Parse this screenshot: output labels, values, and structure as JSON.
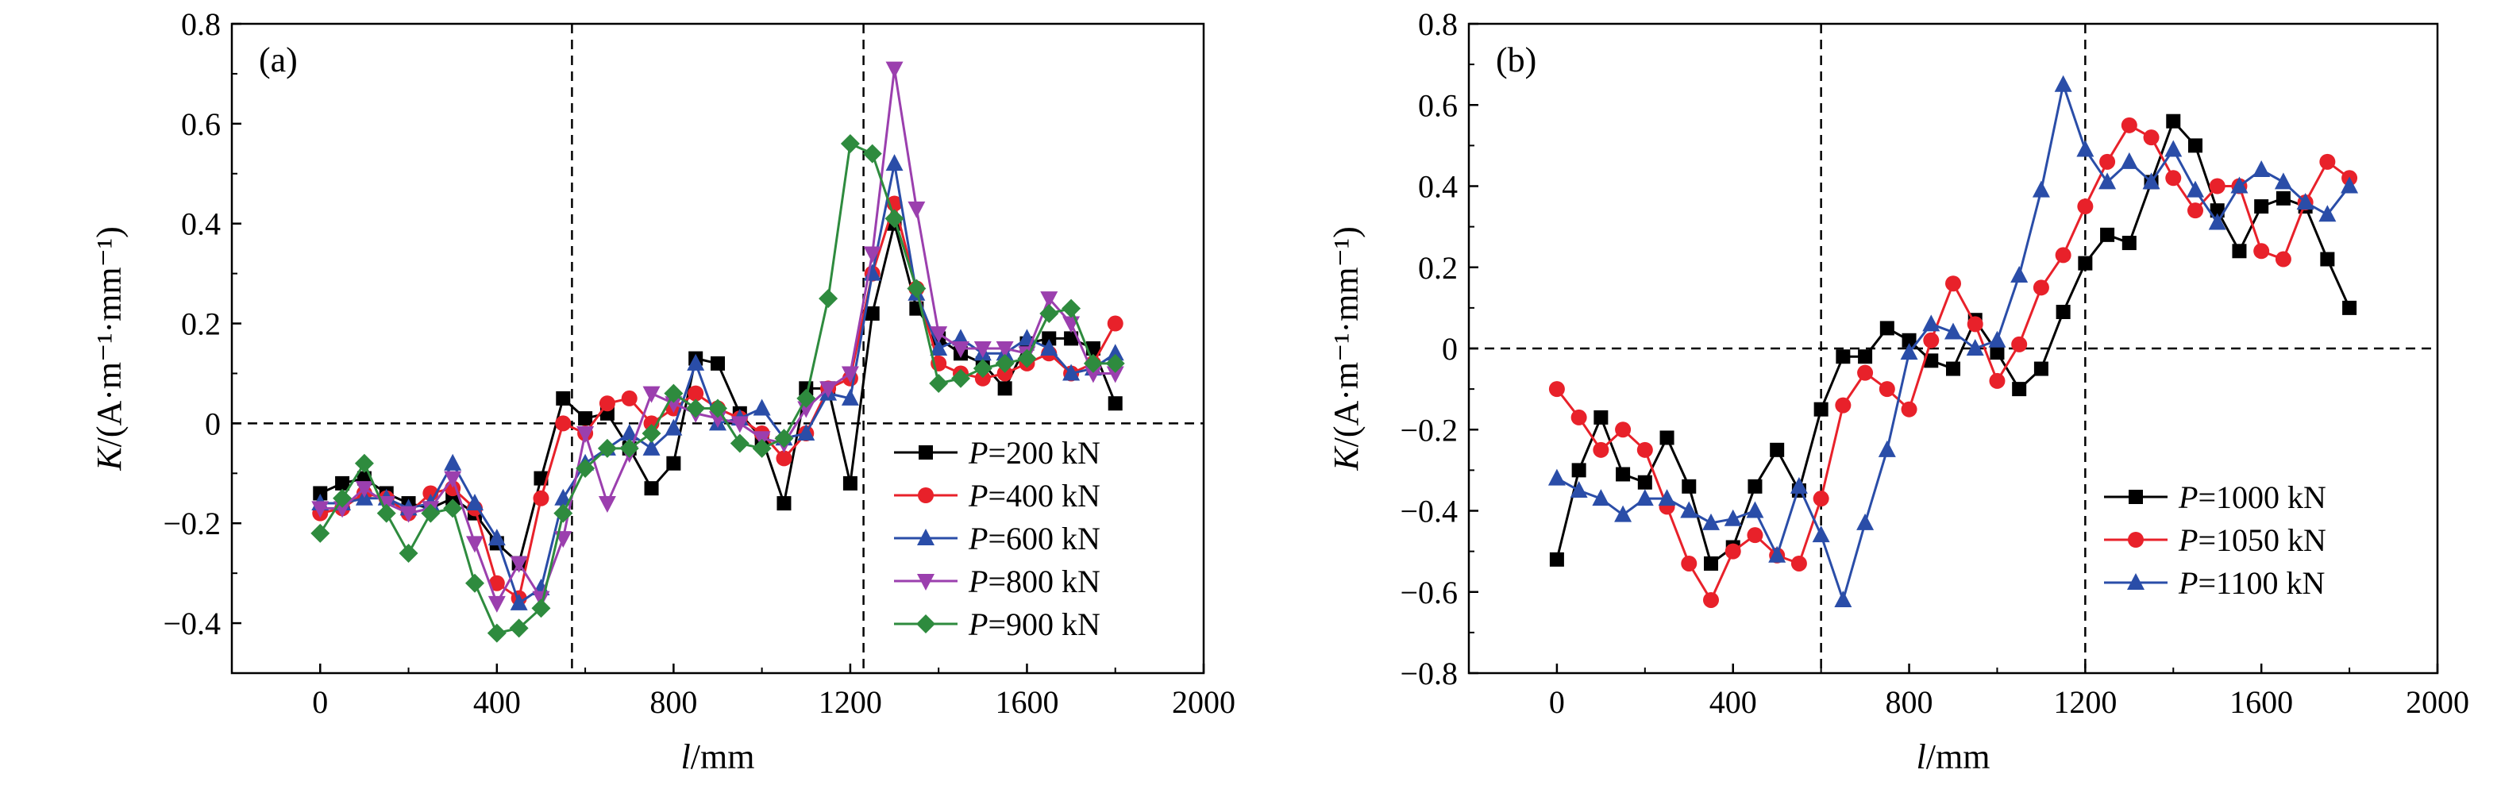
{
  "chart_data": [
    {
      "type": "line",
      "panel_label": "(a)",
      "xlabel_var": "l",
      "xlabel_unit": "/mm",
      "ylabel_var": "K",
      "ylabel_unit": "/(A·m⁻¹·mm⁻¹)",
      "xlim": [
        -200,
        2000
      ],
      "ylim": [
        -0.5,
        0.8
      ],
      "xticks": [
        "0",
        "400",
        "800",
        "1200",
        "1600",
        "2000"
      ],
      "yticks": [
        "−0.4",
        "−0.2",
        "0",
        "0.2",
        "0.4",
        "0.6",
        "0.8"
      ],
      "xtick_values": [
        0,
        400,
        800,
        1200,
        1600,
        2000
      ],
      "ytick_values": [
        -0.4,
        -0.2,
        0,
        0.2,
        0.4,
        0.6,
        0.8
      ],
      "vlines": [
        570,
        1230
      ],
      "hlines": [
        0
      ],
      "legend_position": "bottom-right",
      "series": [
        {
          "var": "P",
          "rest": "=200 kN",
          "color": "#000000",
          "marker": "square",
          "x": [
            0,
            50,
            100,
            150,
            200,
            250,
            300,
            350,
            400,
            450,
            500,
            550,
            600,
            650,
            700,
            750,
            800,
            850,
            900,
            950,
            1000,
            1050,
            1100,
            1150,
            1200,
            1250,
            1300,
            1350,
            1400,
            1450,
            1500,
            1550,
            1600,
            1650,
            1700,
            1750,
            1800
          ],
          "y": [
            -0.14,
            -0.12,
            -0.11,
            -0.14,
            -0.16,
            -0.17,
            -0.15,
            -0.18,
            -0.24,
            -0.28,
            -0.11,
            0.05,
            0.01,
            0.02,
            -0.05,
            -0.13,
            -0.08,
            0.13,
            0.12,
            0.02,
            -0.03,
            -0.16,
            0.07,
            0.07,
            -0.12,
            0.22,
            0.4,
            0.23,
            0.17,
            0.14,
            0.12,
            0.07,
            0.16,
            0.17,
            0.17,
            0.15,
            0.04
          ]
        },
        {
          "var": "P",
          "rest": "=400 kN",
          "color": "#e8212a",
          "marker": "circle",
          "x": [
            0,
            50,
            100,
            150,
            200,
            250,
            300,
            350,
            400,
            450,
            500,
            550,
            600,
            650,
            700,
            750,
            800,
            850,
            900,
            950,
            1000,
            1050,
            1100,
            1150,
            1200,
            1250,
            1300,
            1350,
            1400,
            1450,
            1500,
            1550,
            1600,
            1650,
            1700,
            1750,
            1800
          ],
          "y": [
            -0.18,
            -0.17,
            -0.14,
            -0.15,
            -0.18,
            -0.14,
            -0.13,
            -0.17,
            -0.32,
            -0.35,
            -0.15,
            0.0,
            -0.02,
            0.04,
            0.05,
            0.0,
            0.03,
            0.06,
            0.03,
            0.01,
            -0.02,
            -0.07,
            -0.02,
            0.07,
            0.09,
            0.3,
            0.44,
            0.27,
            0.12,
            0.1,
            0.09,
            0.1,
            0.12,
            0.14,
            0.1,
            0.12,
            0.2
          ]
        },
        {
          "var": "P",
          "rest": "=600 kN",
          "color": "#2a4da8",
          "marker": "triangle-up",
          "x": [
            0,
            50,
            100,
            150,
            200,
            250,
            300,
            350,
            400,
            450,
            500,
            550,
            600,
            650,
            700,
            750,
            800,
            850,
            900,
            950,
            1000,
            1050,
            1100,
            1150,
            1200,
            1250,
            1300,
            1350,
            1400,
            1450,
            1500,
            1550,
            1600,
            1650,
            1700,
            1750,
            1800
          ],
          "y": [
            -0.16,
            -0.16,
            -0.15,
            -0.15,
            -0.17,
            -0.16,
            -0.08,
            -0.16,
            -0.23,
            -0.36,
            -0.33,
            -0.15,
            -0.08,
            -0.05,
            -0.02,
            -0.05,
            -0.01,
            0.12,
            0.0,
            0.01,
            0.03,
            -0.03,
            -0.02,
            0.06,
            0.05,
            0.3,
            0.52,
            0.26,
            0.15,
            0.17,
            0.14,
            0.14,
            0.17,
            0.15,
            0.1,
            0.11,
            0.14
          ]
        },
        {
          "var": "P",
          "rest": "=800 kN",
          "color": "#9b3fae",
          "marker": "triangle-down",
          "x": [
            0,
            50,
            100,
            150,
            200,
            250,
            300,
            350,
            400,
            450,
            500,
            550,
            600,
            650,
            700,
            750,
            800,
            850,
            900,
            950,
            1000,
            1050,
            1100,
            1150,
            1200,
            1250,
            1300,
            1350,
            1400,
            1450,
            1500,
            1550,
            1600,
            1650,
            1700,
            1750,
            1800
          ],
          "y": [
            -0.17,
            -0.17,
            -0.13,
            -0.16,
            -0.18,
            -0.17,
            -0.11,
            -0.24,
            -0.36,
            -0.28,
            -0.35,
            -0.23,
            -0.02,
            -0.16,
            -0.06,
            0.06,
            0.04,
            0.02,
            0.01,
            0.0,
            -0.03,
            -0.04,
            0.03,
            0.07,
            0.1,
            0.34,
            0.71,
            0.43,
            0.18,
            0.15,
            0.15,
            0.15,
            0.14,
            0.25,
            0.2,
            0.1,
            0.1
          ]
        },
        {
          "var": "P",
          "rest": "=900 kN",
          "color": "#2e8b3e",
          "marker": "diamond",
          "x": [
            0,
            50,
            100,
            150,
            200,
            250,
            300,
            350,
            400,
            450,
            500,
            550,
            600,
            650,
            700,
            750,
            800,
            850,
            900,
            950,
            1000,
            1050,
            1100,
            1150,
            1200,
            1250,
            1300,
            1350,
            1400,
            1450,
            1500,
            1550,
            1600,
            1650,
            1700,
            1750,
            1800
          ],
          "y": [
            -0.22,
            -0.15,
            -0.08,
            -0.18,
            -0.26,
            -0.18,
            -0.17,
            -0.32,
            -0.42,
            -0.41,
            -0.37,
            -0.18,
            -0.09,
            -0.05,
            -0.05,
            -0.02,
            0.06,
            0.03,
            0.03,
            -0.04,
            -0.05,
            -0.03,
            0.05,
            0.25,
            0.56,
            0.54,
            0.41,
            0.27,
            0.08,
            0.09,
            0.11,
            0.12,
            0.13,
            0.22,
            0.23,
            0.12,
            0.12
          ]
        }
      ]
    },
    {
      "type": "line",
      "panel_label": "(b)",
      "xlabel_var": "l",
      "xlabel_unit": "/mm",
      "ylabel_var": "K",
      "ylabel_unit": "/(A·m⁻¹·mm⁻¹)",
      "xlim": [
        -200,
        2000
      ],
      "ylim": [
        -0.8,
        0.8
      ],
      "xticks": [
        "0",
        "400",
        "800",
        "1200",
        "1600",
        "2000"
      ],
      "yticks": [
        "−0.8",
        "−0.6",
        "−0.4",
        "−0.2",
        "0",
        "0.2",
        "0.4",
        "0.6",
        "0.8"
      ],
      "xtick_values": [
        0,
        400,
        800,
        1200,
        1600,
        2000
      ],
      "ytick_values": [
        -0.8,
        -0.6,
        -0.4,
        -0.2,
        0,
        0.2,
        0.4,
        0.6,
        0.8
      ],
      "vlines": [
        600,
        1200
      ],
      "hlines": [
        0
      ],
      "legend_position": "bottom-right",
      "series": [
        {
          "var": "P",
          "rest": "=1000 kN",
          "color": "#000000",
          "marker": "square",
          "x": [
            0,
            50,
            100,
            150,
            200,
            250,
            300,
            350,
            400,
            450,
            500,
            550,
            600,
            650,
            700,
            750,
            800,
            850,
            900,
            950,
            1000,
            1050,
            1100,
            1150,
            1200,
            1250,
            1300,
            1350,
            1400,
            1450,
            1500,
            1550,
            1600,
            1650,
            1700,
            1750,
            1800
          ],
          "y": [
            -0.52,
            -0.3,
            -0.17,
            -0.31,
            -0.33,
            -0.22,
            -0.34,
            -0.53,
            -0.49,
            -0.34,
            -0.25,
            -0.35,
            -0.15,
            -0.02,
            -0.02,
            0.05,
            0.02,
            -0.03,
            -0.05,
            0.07,
            -0.01,
            -0.1,
            -0.05,
            0.09,
            0.21,
            0.28,
            0.26,
            0.41,
            0.56,
            0.5,
            0.34,
            0.24,
            0.35,
            0.37,
            0.35,
            0.22,
            0.1
          ]
        },
        {
          "var": "P",
          "rest": "=1050 kN",
          "color": "#e8212a",
          "marker": "circle",
          "x": [
            0,
            50,
            100,
            150,
            200,
            250,
            300,
            350,
            400,
            450,
            500,
            550,
            600,
            650,
            700,
            750,
            800,
            850,
            900,
            950,
            1000,
            1050,
            1100,
            1150,
            1200,
            1250,
            1300,
            1350,
            1400,
            1450,
            1500,
            1550,
            1600,
            1650,
            1700,
            1750,
            1800
          ],
          "y": [
            -0.1,
            -0.17,
            -0.25,
            -0.2,
            -0.25,
            -0.39,
            -0.53,
            -0.62,
            -0.5,
            -0.46,
            -0.51,
            -0.53,
            -0.37,
            -0.14,
            -0.06,
            -0.1,
            -0.15,
            0.02,
            0.16,
            0.06,
            -0.08,
            0.01,
            0.15,
            0.23,
            0.35,
            0.46,
            0.55,
            0.52,
            0.42,
            0.34,
            0.4,
            0.4,
            0.24,
            0.22,
            0.36,
            0.46,
            0.42
          ]
        },
        {
          "var": "P",
          "rest": "=1100 kN",
          "color": "#2a4da8",
          "marker": "triangle-up",
          "x": [
            0,
            50,
            100,
            150,
            200,
            250,
            300,
            350,
            400,
            450,
            500,
            550,
            600,
            650,
            700,
            750,
            800,
            850,
            900,
            950,
            1000,
            1050,
            1100,
            1150,
            1200,
            1250,
            1300,
            1350,
            1400,
            1450,
            1500,
            1550,
            1600,
            1650,
            1700,
            1750,
            1800
          ],
          "y": [
            -0.32,
            -0.35,
            -0.37,
            -0.41,
            -0.37,
            -0.37,
            -0.4,
            -0.43,
            -0.42,
            -0.4,
            -0.51,
            -0.34,
            -0.46,
            -0.62,
            -0.43,
            -0.25,
            -0.01,
            0.06,
            0.04,
            0.0,
            0.02,
            0.18,
            0.39,
            0.65,
            0.49,
            0.41,
            0.46,
            0.41,
            0.49,
            0.39,
            0.31,
            0.4,
            0.44,
            0.41,
            0.36,
            0.33,
            0.4
          ]
        }
      ]
    }
  ]
}
